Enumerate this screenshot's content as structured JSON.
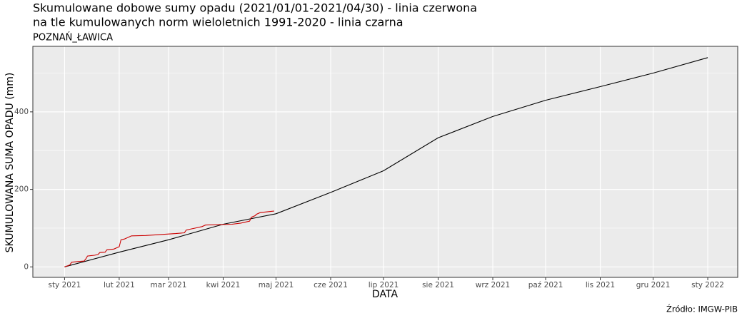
{
  "chart_data": {
    "type": "line",
    "title": [
      "Skumulowane dobowe sumy opadu (2021/01/01-2021/04/30) - linia czerwona",
      "na tle kumulowanych norm wieloletnich 1991-2020 - linia czarna"
    ],
    "subtitle": "POZNAŃ_ŁAWICA",
    "x_label": "DATA",
    "y_label": "SKUMULOWANA SUMA OPADU (mm)",
    "caption": "Źródło: IMGW-PIB",
    "xlim": [
      -18,
      382
    ],
    "ylim": [
      -27,
      569
    ],
    "xticks": [
      {
        "value": 0,
        "label": "sty 2021"
      },
      {
        "value": 31,
        "label": "lut 2021"
      },
      {
        "value": 59,
        "label": "mar 2021"
      },
      {
        "value": 90,
        "label": "kwi 2021"
      },
      {
        "value": 120,
        "label": "maj 2021"
      },
      {
        "value": 151,
        "label": "cze 2021"
      },
      {
        "value": 181,
        "label": "lip 2021"
      },
      {
        "value": 212,
        "label": "sie 2021"
      },
      {
        "value": 243,
        "label": "wrz 2021"
      },
      {
        "value": 273,
        "label": "paź 2021"
      },
      {
        "value": 304,
        "label": "lis 2021"
      },
      {
        "value": 334,
        "label": "gru 2021"
      },
      {
        "value": 365,
        "label": "sty 2022"
      }
    ],
    "yticks": [
      0,
      200,
      400
    ],
    "yminorticks": [
      100,
      300,
      500
    ],
    "grid": true,
    "series": [
      {
        "color": "#000000",
        "x": [
          0,
          31,
          59,
          90,
          120,
          151,
          181,
          212,
          243,
          273,
          304,
          334,
          365
        ],
        "values": [
          0,
          38,
          70,
          110,
          137,
          192,
          248,
          333,
          388,
          430,
          465,
          500,
          540
        ]
      },
      {
        "color": "#cc0000",
        "x": [
          0,
          3,
          4,
          8,
          11,
          12,
          13,
          17,
          19,
          20,
          23,
          24,
          28,
          30,
          31,
          32,
          34,
          37,
          38,
          46,
          56,
          63,
          68,
          69,
          72,
          74,
          78,
          80,
          95,
          100,
          102,
          105,
          106,
          108,
          109,
          111,
          115,
          119
        ],
        "values": [
          0,
          5,
          12,
          14,
          15,
          20,
          28,
          30,
          32,
          37,
          38,
          44,
          46,
          50,
          52,
          70,
          72,
          78,
          80,
          81,
          84,
          86,
          88,
          95,
          98,
          100,
          104,
          108,
          110,
          113,
          115,
          118,
          128,
          132,
          136,
          140,
          142,
          144
        ]
      }
    ]
  }
}
